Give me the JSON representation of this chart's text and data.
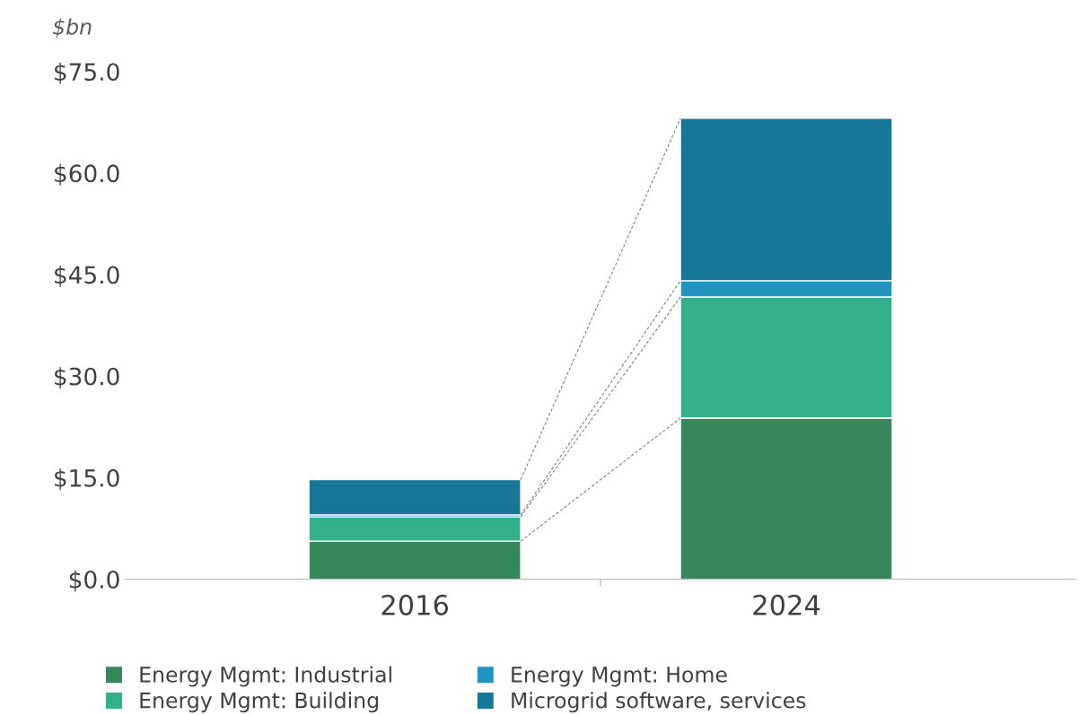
{
  "chart_data": {
    "type": "bar",
    "stacked": true,
    "ylabel": "$bn",
    "categories": [
      "2016",
      "2024"
    ],
    "series": [
      {
        "name": "Energy Mgmt: Industrial",
        "color": "#36875a",
        "values": [
          5.6,
          23.8
        ]
      },
      {
        "name": "Energy Mgmt: Building",
        "color": "#31b08b",
        "values": [
          3.6,
          17.9
        ]
      },
      {
        "name": "Energy Mgmt: Home",
        "color": "#2394c0",
        "values": [
          0.3,
          2.4
        ]
      },
      {
        "name": "Microgrid software, services",
        "color": "#167798",
        "values": [
          5.2,
          24.0
        ]
      }
    ],
    "ylim": [
      0,
      75
    ],
    "yticks": [
      {
        "value": 0,
        "label": "$0.0"
      },
      {
        "value": 15,
        "label": "$15.0"
      },
      {
        "value": 30,
        "label": "$30.0"
      },
      {
        "value": 45,
        "label": "$45.0"
      },
      {
        "value": 60,
        "label": "$60.0"
      },
      {
        "value": 75,
        "label": "$75.0"
      }
    ],
    "grid": false,
    "legend": "bottom"
  }
}
